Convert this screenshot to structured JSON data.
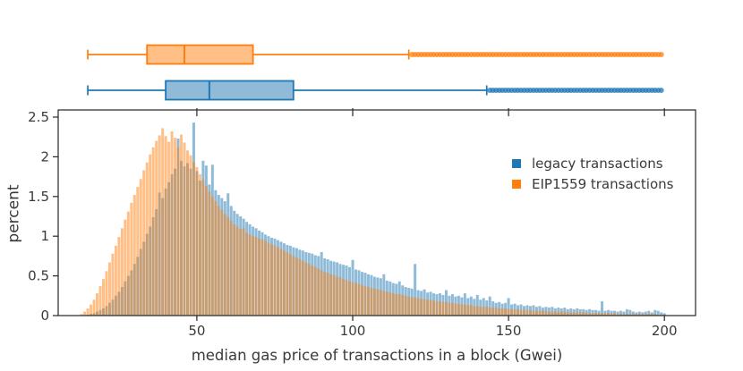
{
  "figure": {
    "background": "#ffffff",
    "text_color": "#3a3a3a",
    "spine_color": "#262626"
  },
  "legend": {
    "items": [
      {
        "id": "legacy",
        "label": "legacy transactions",
        "color": "#1f77b4"
      },
      {
        "id": "eip1559",
        "label": "EIP1559 transactions",
        "color": "#ff7f0e"
      }
    ]
  },
  "axes": {
    "xlabel": "median gas price of transactions in a block (Gwei)",
    "ylabel": "percent"
  },
  "chart_data": [
    {
      "type": "boxplot",
      "orientation": "horizontal",
      "x_unit": "Gwei",
      "series": [
        {
          "name": "EIP1559 transactions",
          "color": "#ff7f0e",
          "whisker_low": 15,
          "q1": 34,
          "median": 46,
          "q3": 68,
          "whisker_high": 118,
          "outliers_range": [
            119,
            199
          ]
        },
        {
          "name": "legacy transactions",
          "color": "#1f77b4",
          "whisker_low": 15,
          "q1": 40,
          "median": 54,
          "q3": 81,
          "whisker_high": 143,
          "outliers_range": [
            144,
            199
          ]
        }
      ]
    },
    {
      "type": "bar",
      "subtype": "overlapping-histogram",
      "title": "",
      "xlabel": "median gas price of transactions in a block (Gwei)",
      "ylabel": "percent",
      "xlim": [
        5.5,
        210
      ],
      "ylim": [
        0,
        2.59
      ],
      "xticks": [
        50,
        100,
        150,
        200
      ],
      "yticks": [
        "0",
        "0.5",
        "1",
        "1.5",
        "2",
        "2.5"
      ],
      "ytick_values": [
        0,
        0.5,
        1,
        1.5,
        2,
        2.5
      ],
      "grid": false,
      "legend_position": "center right",
      "bin_start": 13,
      "bin_width": 1,
      "series": [
        {
          "name": "legacy transactions",
          "color": "#1f77b4",
          "opacity": 0.5,
          "values": [
            0.0,
            0.0,
            0.01,
            0.02,
            0.03,
            0.05,
            0.07,
            0.09,
            0.12,
            0.16,
            0.2,
            0.25,
            0.3,
            0.36,
            0.43,
            0.5,
            0.57,
            0.65,
            0.74,
            0.84,
            0.93,
            1.03,
            1.12,
            1.24,
            1.34,
            1.55,
            1.48,
            1.6,
            1.68,
            1.78,
            1.85,
            2.23,
            1.95,
            1.88,
            1.92,
            1.85,
            2.43,
            1.82,
            1.7,
            1.95,
            1.89,
            1.65,
            1.9,
            1.58,
            1.52,
            1.48,
            1.44,
            1.54,
            1.38,
            1.32,
            1.28,
            1.25,
            1.22,
            1.18,
            1.15,
            1.12,
            1.1,
            1.07,
            1.05,
            1.02,
            1.0,
            0.98,
            0.97,
            0.95,
            0.93,
            0.91,
            0.89,
            0.88,
            0.86,
            0.85,
            0.83,
            0.82,
            0.8,
            0.79,
            0.78,
            0.76,
            0.75,
            0.8,
            0.72,
            0.71,
            0.69,
            0.68,
            0.67,
            0.65,
            0.64,
            0.63,
            0.61,
            0.7,
            0.58,
            0.57,
            0.55,
            0.54,
            0.52,
            0.51,
            0.49,
            0.48,
            0.47,
            0.52,
            0.44,
            0.43,
            0.41,
            0.4,
            0.43,
            0.38,
            0.36,
            0.35,
            0.34,
            0.65,
            0.32,
            0.31,
            0.33,
            0.29,
            0.3,
            0.28,
            0.27,
            0.28,
            0.26,
            0.32,
            0.25,
            0.27,
            0.24,
            0.25,
            0.23,
            0.28,
            0.22,
            0.24,
            0.21,
            0.26,
            0.2,
            0.22,
            0.19,
            0.24,
            0.18,
            0.16,
            0.17,
            0.15,
            0.16,
            0.22,
            0.14,
            0.15,
            0.13,
            0.14,
            0.12,
            0.13,
            0.12,
            0.13,
            0.11,
            0.12,
            0.1,
            0.11,
            0.1,
            0.11,
            0.09,
            0.1,
            0.09,
            0.1,
            0.08,
            0.09,
            0.08,
            0.09,
            0.08,
            0.08,
            0.07,
            0.08,
            0.07,
            0.07,
            0.06,
            0.18,
            0.06,
            0.07,
            0.06,
            0.06,
            0.05,
            0.06,
            0.05,
            0.08,
            0.07,
            0.05,
            0.04,
            0.05,
            0.04,
            0.05,
            0.06,
            0.04,
            0.07,
            0.06,
            0.04,
            0.03
          ]
        },
        {
          "name": "EIP1559 transactions",
          "color": "#ff7f0e",
          "opacity": 0.5,
          "values": [
            0.02,
            0.05,
            0.09,
            0.14,
            0.2,
            0.28,
            0.37,
            0.46,
            0.56,
            0.67,
            0.78,
            0.88,
            0.99,
            1.1,
            1.21,
            1.31,
            1.42,
            1.52,
            1.62,
            1.72,
            1.83,
            1.93,
            2.03,
            2.12,
            2.2,
            2.27,
            2.36,
            2.26,
            2.19,
            2.32,
            2.24,
            2.12,
            2.28,
            2.18,
            2.08,
            2.02,
            1.93,
            1.87,
            1.78,
            1.71,
            1.63,
            1.56,
            1.5,
            1.44,
            1.38,
            1.33,
            1.28,
            1.24,
            1.19,
            1.15,
            1.12,
            1.09,
            1.1,
            1.04,
            1.02,
            1.0,
            0.99,
            0.97,
            0.96,
            0.94,
            0.92,
            0.9,
            0.88,
            0.86,
            0.84,
            0.82,
            0.8,
            0.77,
            0.75,
            0.73,
            0.71,
            0.69,
            0.67,
            0.65,
            0.63,
            0.61,
            0.59,
            0.57,
            0.55,
            0.54,
            0.52,
            0.51,
            0.49,
            0.48,
            0.46,
            0.45,
            0.43,
            0.42,
            0.41,
            0.4,
            0.38,
            0.37,
            0.36,
            0.35,
            0.34,
            0.33,
            0.32,
            0.31,
            0.3,
            0.29,
            0.28,
            0.27,
            0.27,
            0.26,
            0.25,
            0.24,
            0.23,
            0.23,
            0.22,
            0.21,
            0.21,
            0.2,
            0.2,
            0.19,
            0.18,
            0.18,
            0.17,
            0.17,
            0.16,
            0.16,
            0.15,
            0.15,
            0.14,
            0.14,
            0.13,
            0.13,
            0.12,
            0.12,
            0.11,
            0.11,
            0.11,
            0.1,
            0.1,
            0.1,
            0.09,
            0.09,
            0.09,
            0.08,
            0.08,
            0.08,
            0.08,
            0.07,
            0.07,
            0.07,
            0.07,
            0.06,
            0.06,
            0.06,
            0.06,
            0.06,
            0.05,
            0.05,
            0.05,
            0.05,
            0.05,
            0.05,
            0.04,
            0.04,
            0.04,
            0.04,
            0.04,
            0.04,
            0.04,
            0.03,
            0.03,
            0.03,
            0.03,
            0.03,
            0.03,
            0.03,
            0.03,
            0.03,
            0.02,
            0.02,
            0.02,
            0.02,
            0.02,
            0.02,
            0.02,
            0.02,
            0.02,
            0.02,
            0.02,
            0.02,
            0.02,
            0.01,
            0.01,
            0.01
          ]
        }
      ]
    }
  ]
}
